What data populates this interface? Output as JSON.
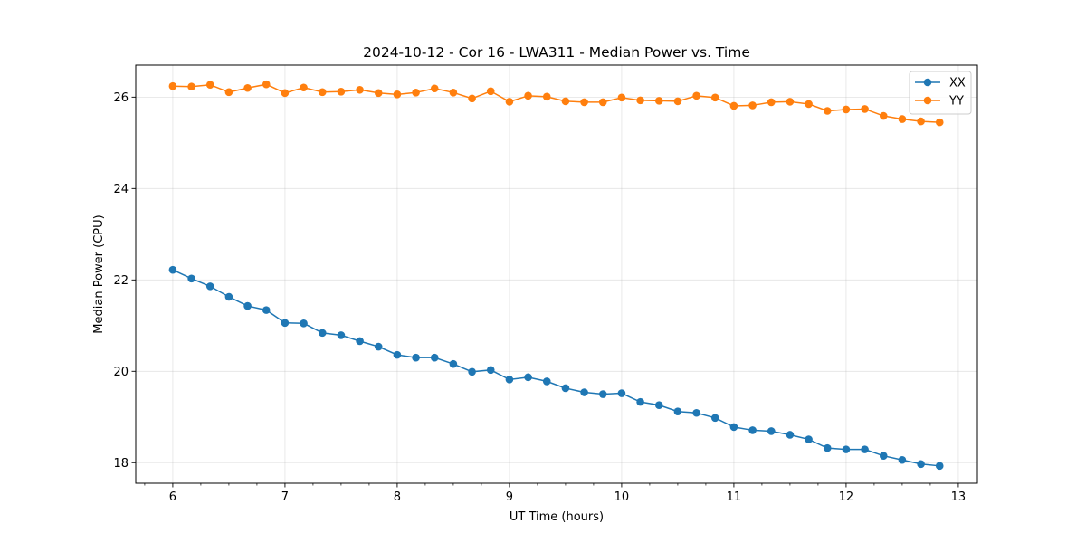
{
  "chart_data": {
    "type": "line",
    "title": "2024-10-12 - Cor 16 - LWA311 - Median Power vs. Time",
    "xlabel": "UT Time (hours)",
    "ylabel": "Median Power (CPU)",
    "xlim": [
      5.67,
      13.17
    ],
    "ylim": [
      17.55,
      26.7
    ],
    "xticks": [
      6,
      7,
      8,
      9,
      10,
      11,
      12,
      13
    ],
    "yticks": [
      18,
      20,
      22,
      24,
      26
    ],
    "xtick_labels": [
      "6",
      "7",
      "8",
      "9",
      "10",
      "11",
      "12",
      "13"
    ],
    "ytick_labels": [
      "18",
      "20",
      "22",
      "24",
      "26"
    ],
    "grid": true,
    "legend_position": "top-right",
    "x": [
      6.0,
      6.1667,
      6.3333,
      6.5,
      6.6667,
      6.8333,
      7.0,
      7.1667,
      7.3333,
      7.5,
      7.6667,
      7.8333,
      8.0,
      8.1667,
      8.3333,
      8.5,
      8.6667,
      8.8333,
      9.0,
      9.1667,
      9.3333,
      9.5,
      9.6667,
      9.8333,
      10.0,
      10.1667,
      10.3333,
      10.5,
      10.6667,
      10.8333,
      11.0,
      11.1667,
      11.3333,
      11.5,
      11.6667,
      11.8333,
      12.0,
      12.1667,
      12.3333,
      12.5,
      12.6667,
      12.8333
    ],
    "series": [
      {
        "name": "XX",
        "color": "#1f77b4",
        "values": [
          22.22,
          22.03,
          21.86,
          21.63,
          21.43,
          21.34,
          21.06,
          21.05,
          20.84,
          20.79,
          20.66,
          20.54,
          20.36,
          20.3,
          20.3,
          20.16,
          19.99,
          20.03,
          19.82,
          19.87,
          19.78,
          19.63,
          19.54,
          19.5,
          19.52,
          19.33,
          19.26,
          19.12,
          19.09,
          18.98,
          18.78,
          18.71,
          18.69,
          18.61,
          18.51,
          18.32,
          18.29,
          18.29,
          18.15,
          18.06,
          17.97,
          17.93
        ]
      },
      {
        "name": "YY",
        "color": "#ff7f0e",
        "values": [
          26.24,
          26.23,
          26.27,
          26.11,
          26.2,
          26.28,
          26.09,
          26.21,
          26.11,
          26.12,
          26.16,
          26.09,
          26.06,
          26.1,
          26.19,
          26.1,
          25.97,
          26.13,
          25.9,
          26.03,
          26.01,
          25.91,
          25.89,
          25.89,
          25.99,
          25.93,
          25.92,
          25.91,
          26.03,
          25.99,
          25.81,
          25.82,
          25.89,
          25.9,
          25.85,
          25.7,
          25.73,
          25.74,
          25.59,
          25.52,
          25.47,
          25.45
        ]
      }
    ]
  }
}
